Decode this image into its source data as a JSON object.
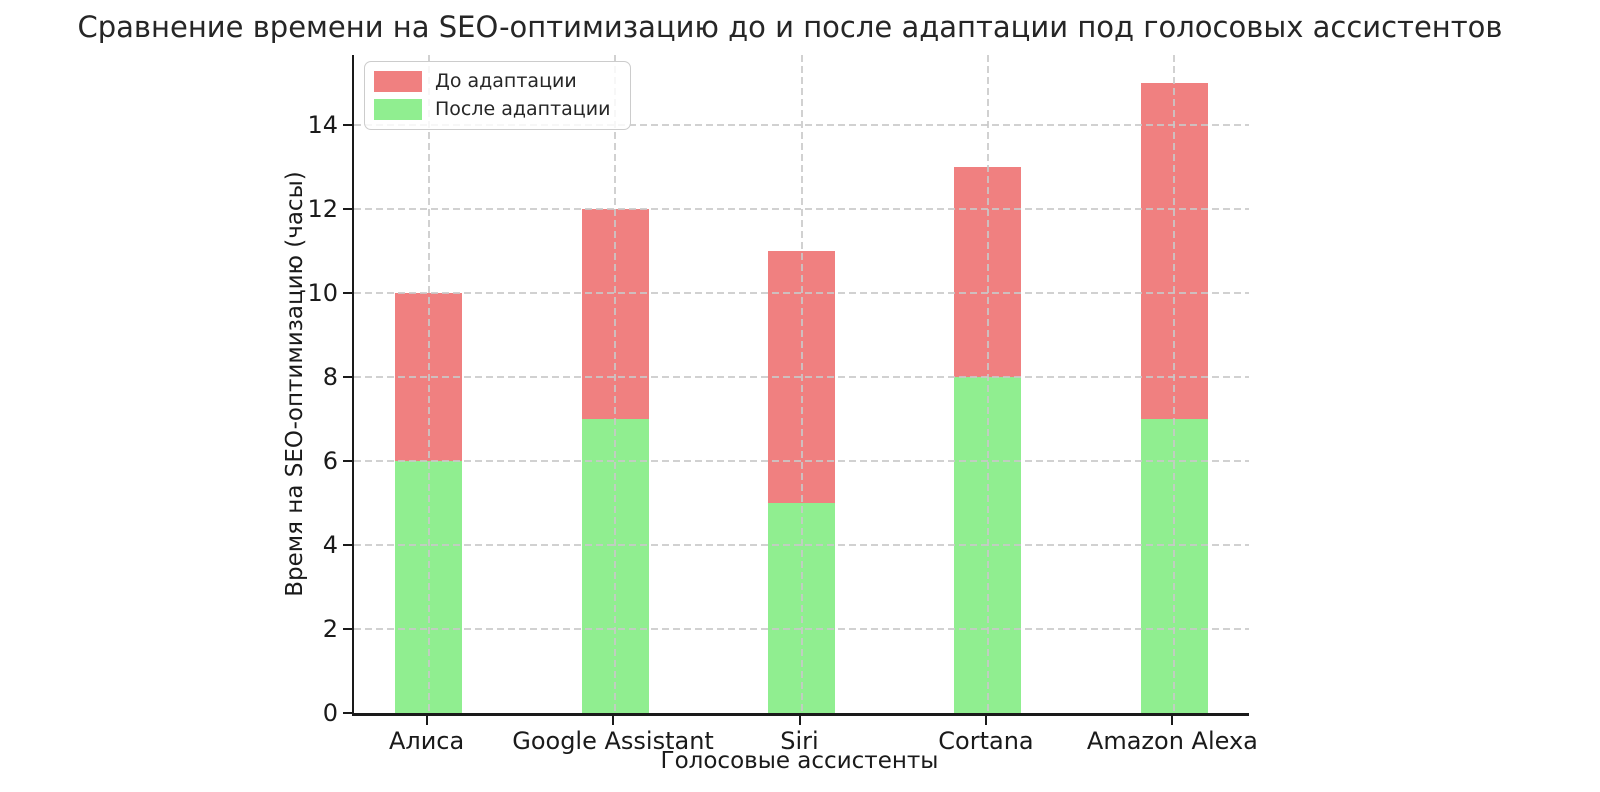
{
  "title": "Сравнение времени на SEO-оптимизацию до и после адаптации под голосовых ассистентов",
  "chart_data": {
    "type": "bar",
    "bar_style": "overlapping",
    "categories": [
      "Алиса",
      "Google Assistant",
      "Siri",
      "Cortana",
      "Amazon Alexa"
    ],
    "series": [
      {
        "name": "До адаптации",
        "color": "#f08080",
        "values": [
          10,
          12,
          11,
          13,
          15
        ]
      },
      {
        "name": "После адаптации",
        "color": "#90ee90",
        "values": [
          6,
          7,
          5,
          8,
          7
        ]
      }
    ],
    "xlabel": "Голосовые ассистенты",
    "ylabel": "Время на SEO-оптимизацию (часы)",
    "yticks": [
      0,
      2,
      4,
      6,
      8,
      10,
      12,
      14
    ],
    "ylim": [
      0,
      15.66
    ],
    "grid": true,
    "grid_above_bars": true,
    "legend_position": "upper left",
    "spines": [
      "left",
      "bottom"
    ],
    "text_color": "#1a1a1a",
    "background_color": "#ffffff"
  }
}
